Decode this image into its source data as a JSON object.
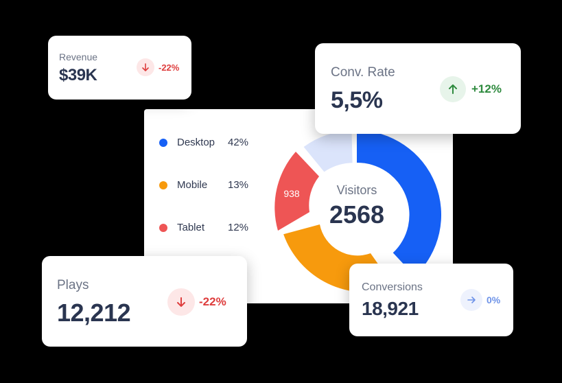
{
  "revenue": {
    "label": "Revenue",
    "value": "$39K",
    "change": "-22%",
    "trend_icon": "arrow-down-icon"
  },
  "conversion_rate": {
    "label": "Conv. Rate",
    "value": "5,5%",
    "change": "+12%",
    "trend_icon": "arrow-up-icon"
  },
  "visitors_panel": {
    "center_label": "Visitors",
    "center_value": "2568",
    "segment_label": "938",
    "legend": [
      {
        "name": "Desktop",
        "percent": "42%",
        "color": "#1660f5"
      },
      {
        "name": "Mobile",
        "percent": "13%",
        "color": "#f79a0d"
      },
      {
        "name": "Tablet",
        "percent": "12%",
        "color": "#ee5555"
      }
    ]
  },
  "plays": {
    "label": "Plays",
    "value": "12,212",
    "change": "-22%",
    "trend_icon": "arrow-down-icon"
  },
  "conversions": {
    "label": "Conversions",
    "value": "18,921",
    "change": "0%",
    "trend_icon": "arrow-right-icon"
  },
  "colors": {
    "desktop": "#1660f5",
    "mobile": "#f79a0d",
    "tablet": "#ee5555",
    "other": "#dbe4fb",
    "negative": "#de3d3d",
    "positive": "#2e8a3e",
    "neutral": "#6e93e8"
  }
}
